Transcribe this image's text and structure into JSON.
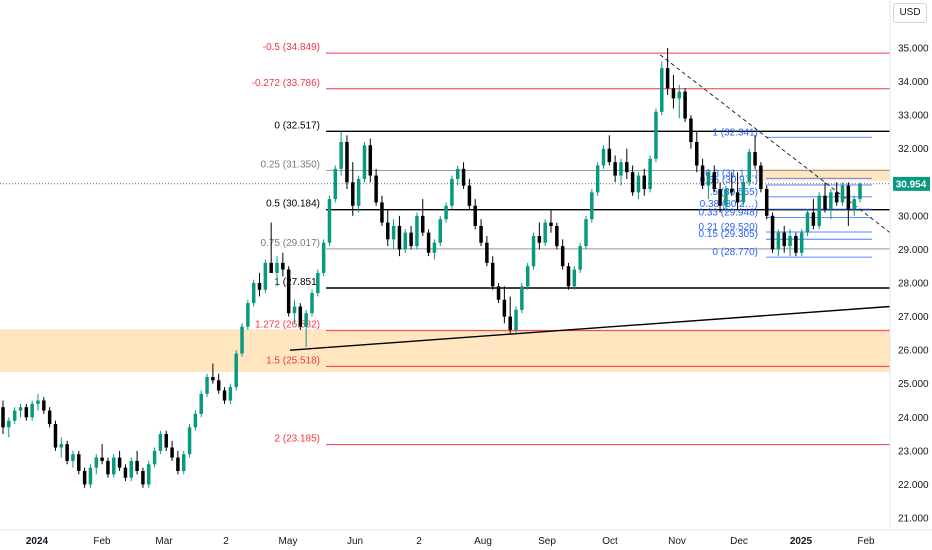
{
  "currency_button": "USD",
  "price_label": "30.954",
  "chart_data": {
    "type": "candlestick",
    "title": "",
    "y_axis": {
      "ticks": [
        "35.000",
        "34.000",
        "33.000",
        "32.000",
        "31.000",
        "30.000",
        "29.000",
        "28.000",
        "27.000",
        "26.000",
        "25.000",
        "24.000",
        "23.000",
        "22.000",
        "21.000"
      ],
      "ylim": [
        20.5,
        36.0
      ]
    },
    "x_axis": {
      "ticks": [
        "2024",
        "Feb",
        "Mar",
        "2",
        "May",
        "Jun",
        "2",
        "Aug",
        "Sep",
        "Oct",
        "Nov",
        "Dec",
        "2025",
        "Feb"
      ],
      "bold_ticks": [
        "2024",
        "2025"
      ]
    },
    "fib_levels_main": [
      {
        "label": "-0.5 (34.849)",
        "value": 34.849,
        "color": "#f23645"
      },
      {
        "label": "-0.272 (33.786)",
        "value": 33.786,
        "color": "#f23645"
      },
      {
        "label": "0 (32.517)",
        "value": 32.517,
        "color": "#000000"
      },
      {
        "label": "0.25 (31.350)",
        "value": 31.35,
        "color": "#9598a1"
      },
      {
        "label": "0.5 (30.184)",
        "value": 30.184,
        "color": "#000000"
      },
      {
        "label": "0.75 (29.017)",
        "value": 29.017,
        "color": "#9598a1"
      },
      {
        "label": "1 (27.851)",
        "value": 27.851,
        "color": "#000000"
      },
      {
        "label": "1.272 (26.582)",
        "value": 26.582,
        "color": "#f23645"
      },
      {
        "label": "1.5 (25.518)",
        "value": 25.518,
        "color": "#f23645"
      },
      {
        "label": "2 (23.185)",
        "value": 23.185,
        "color": "#f23645"
      }
    ],
    "fib_levels_small": [
      {
        "label": "1 (32.341)",
        "value": 32.341
      },
      {
        "label": "0.8 (31.1…)",
        "value": 31.12
      },
      {
        "label": "0.65 (30.9…)",
        "value": 30.92
      },
      {
        "label": ".5 (30.565)",
        "value": 30.565
      },
      {
        "label": "0.38 (30.2…)",
        "value": 30.2
      },
      {
        "label": "0.33 (29.948)",
        "value": 29.948
      },
      {
        "label": "0.21 (29.520)",
        "value": 29.52
      },
      {
        "label": "0.15 (29.305)",
        "value": 29.305
      },
      {
        "label": "0 (28.770)",
        "value": 28.77
      }
    ],
    "highlight_zones": [
      {
        "from": 25.35,
        "to": 26.62,
        "color": "#ffe0b2"
      },
      {
        "from": 31.05,
        "to": 31.4,
        "color": "#ffe0b2"
      }
    ],
    "trendline_support": [
      {
        "bar": 0,
        "price": 26.0
      },
      {
        "bar": 0,
        "price": 27.3
      }
    ],
    "trendline_resistance": [
      {
        "bar": 0,
        "price": 34.8
      },
      {
        "bar": 0,
        "price": 29.5
      }
    ],
    "current_price": 30.954,
    "candles_ohlc": [
      [
        24.3,
        24.5,
        23.5,
        23.7
      ],
      [
        23.7,
        24.0,
        23.4,
        23.9
      ],
      [
        23.9,
        24.3,
        23.8,
        24.2
      ],
      [
        24.2,
        24.4,
        24.0,
        24.3
      ],
      [
        24.3,
        24.4,
        23.9,
        24.0
      ],
      [
        24.0,
        24.5,
        23.9,
        24.4
      ],
      [
        24.4,
        24.7,
        24.2,
        24.5
      ],
      [
        24.5,
        24.6,
        24.1,
        24.2
      ],
      [
        24.2,
        24.3,
        23.7,
        23.8
      ],
      [
        23.8,
        23.9,
        23.0,
        23.1
      ],
      [
        23.1,
        23.4,
        22.8,
        23.2
      ],
      [
        23.2,
        23.3,
        22.6,
        22.7
      ],
      [
        22.7,
        23.0,
        22.5,
        22.9
      ],
      [
        22.9,
        23.0,
        22.3,
        22.4
      ],
      [
        22.4,
        22.5,
        21.9,
        22.0
      ],
      [
        22.0,
        22.6,
        21.9,
        22.5
      ],
      [
        22.5,
        22.9,
        22.3,
        22.8
      ],
      [
        22.8,
        23.2,
        22.6,
        22.7
      ],
      [
        22.7,
        22.8,
        22.2,
        22.3
      ],
      [
        22.3,
        22.9,
        22.2,
        22.8
      ],
      [
        22.8,
        23.0,
        22.4,
        22.5
      ],
      [
        22.5,
        22.6,
        22.1,
        22.2
      ],
      [
        22.2,
        22.8,
        22.1,
        22.7
      ],
      [
        22.7,
        23.0,
        22.3,
        22.4
      ],
      [
        22.4,
        22.5,
        21.9,
        22.0
      ],
      [
        22.0,
        22.7,
        21.9,
        22.6
      ],
      [
        22.6,
        23.1,
        22.5,
        23.0
      ],
      [
        23.0,
        23.6,
        22.9,
        23.5
      ],
      [
        23.5,
        23.6,
        23.0,
        23.1
      ],
      [
        23.1,
        23.3,
        22.7,
        22.8
      ],
      [
        22.8,
        23.0,
        22.3,
        22.4
      ],
      [
        22.4,
        23.0,
        22.3,
        22.9
      ],
      [
        22.9,
        23.8,
        22.8,
        23.7
      ],
      [
        23.7,
        24.2,
        23.6,
        24.1
      ],
      [
        24.1,
        24.8,
        24.0,
        24.7
      ],
      [
        24.7,
        25.3,
        24.6,
        25.2
      ],
      [
        25.2,
        25.6,
        25.0,
        25.1
      ],
      [
        25.1,
        25.3,
        24.7,
        24.8
      ],
      [
        24.8,
        24.9,
        24.4,
        24.5
      ],
      [
        24.5,
        25.0,
        24.4,
        24.9
      ],
      [
        24.9,
        26.0,
        24.8,
        25.9
      ],
      [
        25.9,
        26.8,
        25.8,
        26.7
      ],
      [
        26.7,
        27.5,
        26.6,
        27.4
      ],
      [
        27.4,
        28.1,
        27.3,
        28.0
      ],
      [
        28.0,
        28.3,
        27.6,
        27.8
      ],
      [
        27.8,
        28.7,
        27.7,
        28.6
      ],
      [
        28.6,
        29.8,
        28.5,
        28.3
      ],
      [
        28.3,
        28.8,
        27.9,
        28.6
      ],
      [
        28.6,
        28.9,
        28.2,
        28.4
      ],
      [
        28.4,
        28.5,
        27.0,
        27.1
      ],
      [
        27.1,
        27.5,
        26.8,
        27.3
      ],
      [
        27.3,
        27.4,
        26.6,
        26.7
      ],
      [
        26.7,
        27.2,
        26.1,
        27.1
      ],
      [
        27.1,
        27.8,
        27.0,
        27.7
      ],
      [
        27.7,
        28.4,
        27.6,
        28.3
      ],
      [
        28.3,
        29.3,
        28.2,
        29.2
      ],
      [
        29.2,
        30.6,
        29.1,
        30.5
      ],
      [
        30.5,
        31.5,
        30.4,
        31.4
      ],
      [
        31.4,
        32.5,
        31.2,
        32.2
      ],
      [
        32.2,
        32.4,
        30.8,
        31.0
      ],
      [
        31.0,
        31.6,
        30.0,
        30.3
      ],
      [
        30.3,
        31.2,
        30.1,
        31.1
      ],
      [
        31.1,
        32.2,
        31.0,
        32.1
      ],
      [
        32.1,
        32.3,
        31.0,
        31.2
      ],
      [
        31.2,
        31.4,
        30.3,
        30.4
      ],
      [
        30.4,
        30.6,
        29.7,
        29.8
      ],
      [
        29.8,
        30.2,
        29.1,
        29.3
      ],
      [
        29.3,
        29.9,
        29.0,
        29.7
      ],
      [
        29.7,
        30.0,
        28.8,
        29.0
      ],
      [
        29.0,
        29.6,
        28.9,
        29.5
      ],
      [
        29.5,
        29.7,
        29.0,
        29.1
      ],
      [
        29.1,
        30.1,
        29.0,
        30.0
      ],
      [
        30.0,
        30.5,
        29.4,
        29.5
      ],
      [
        29.5,
        29.6,
        28.8,
        28.9
      ],
      [
        28.9,
        29.3,
        28.7,
        29.2
      ],
      [
        29.2,
        30.0,
        29.1,
        29.9
      ],
      [
        29.9,
        30.4,
        29.8,
        30.3
      ],
      [
        30.3,
        31.2,
        30.2,
        31.1
      ],
      [
        31.1,
        31.5,
        30.9,
        31.4
      ],
      [
        31.4,
        31.6,
        30.8,
        30.9
      ],
      [
        30.9,
        31.1,
        30.2,
        30.3
      ],
      [
        30.3,
        30.5,
        29.6,
        29.7
      ],
      [
        29.7,
        29.9,
        29.1,
        29.2
      ],
      [
        29.2,
        29.4,
        28.5,
        28.6
      ],
      [
        28.6,
        28.8,
        27.8,
        27.9
      ],
      [
        27.9,
        28.0,
        27.4,
        27.5
      ],
      [
        27.5,
        27.9,
        26.8,
        27.0
      ],
      [
        27.0,
        27.6,
        26.5,
        26.6
      ],
      [
        26.6,
        27.3,
        26.5,
        27.2
      ],
      [
        27.2,
        28.0,
        27.1,
        27.9
      ],
      [
        27.9,
        28.6,
        27.8,
        28.5
      ],
      [
        28.5,
        29.5,
        28.4,
        29.4
      ],
      [
        29.4,
        29.8,
        29.0,
        29.2
      ],
      [
        29.2,
        29.9,
        29.1,
        29.8
      ],
      [
        29.8,
        30.2,
        29.5,
        29.7
      ],
      [
        29.7,
        29.8,
        29.0,
        29.1
      ],
      [
        29.1,
        29.3,
        28.4,
        28.5
      ],
      [
        28.5,
        28.6,
        27.8,
        27.9
      ],
      [
        27.9,
        28.5,
        27.8,
        28.4
      ],
      [
        28.4,
        29.2,
        28.3,
        29.1
      ],
      [
        29.1,
        30.0,
        29.0,
        29.9
      ],
      [
        29.9,
        30.8,
        29.8,
        30.7
      ],
      [
        30.7,
        31.6,
        30.6,
        31.5
      ],
      [
        31.5,
        32.1,
        31.4,
        32.0
      ],
      [
        32.0,
        32.4,
        31.5,
        31.6
      ],
      [
        31.6,
        31.8,
        31.0,
        31.2
      ],
      [
        31.2,
        31.7,
        30.9,
        31.6
      ],
      [
        31.6,
        32.0,
        31.1,
        31.3
      ],
      [
        31.3,
        31.5,
        30.6,
        30.7
      ],
      [
        30.7,
        31.3,
        30.5,
        31.2
      ],
      [
        31.2,
        31.4,
        30.6,
        30.8
      ],
      [
        30.8,
        31.8,
        30.7,
        31.7
      ],
      [
        31.7,
        33.2,
        31.6,
        33.1
      ],
      [
        33.1,
        34.6,
        33.0,
        34.4
      ],
      [
        34.4,
        35.0,
        33.6,
        33.8
      ],
      [
        33.8,
        34.2,
        33.2,
        33.5
      ],
      [
        33.5,
        33.9,
        32.9,
        33.7
      ],
      [
        33.7,
        33.8,
        32.8,
        32.9
      ],
      [
        32.9,
        33.0,
        32.0,
        32.2
      ],
      [
        32.2,
        32.5,
        31.3,
        31.5
      ],
      [
        31.5,
        31.7,
        30.8,
        30.9
      ],
      [
        30.9,
        31.4,
        30.5,
        31.3
      ],
      [
        31.3,
        31.5,
        30.7,
        30.8
      ],
      [
        30.8,
        31.0,
        30.1,
        30.3
      ],
      [
        30.3,
        30.9,
        30.1,
        30.8
      ],
      [
        30.8,
        31.3,
        30.6,
        30.7
      ],
      [
        30.7,
        31.3,
        30.2,
        30.4
      ],
      [
        30.4,
        31.1,
        30.3,
        31.0
      ],
      [
        31.0,
        32.0,
        30.9,
        31.9
      ],
      [
        31.9,
        32.4,
        31.4,
        31.5
      ],
      [
        31.5,
        31.6,
        30.7,
        30.8
      ],
      [
        30.8,
        30.9,
        29.9,
        30.0
      ],
      [
        30.0,
        30.1,
        28.9,
        29.0
      ],
      [
        29.0,
        29.6,
        28.8,
        29.5
      ],
      [
        29.5,
        29.7,
        28.9,
        29.1
      ],
      [
        29.1,
        29.6,
        28.8,
        29.4
      ],
      [
        29.4,
        29.5,
        28.8,
        28.9
      ],
      [
        28.9,
        29.6,
        28.8,
        29.5
      ],
      [
        29.5,
        30.2,
        29.4,
        30.1
      ],
      [
        30.1,
        30.5,
        29.6,
        29.7
      ],
      [
        29.7,
        30.7,
        29.6,
        30.6
      ],
      [
        30.6,
        31.0,
        30.1,
        30.2
      ],
      [
        30.2,
        30.8,
        29.9,
        30.7
      ],
      [
        30.7,
        31.0,
        30.3,
        30.4
      ],
      [
        30.4,
        31.0,
        30.3,
        30.9
      ],
      [
        30.9,
        31.0,
        29.7,
        30.2
      ],
      [
        30.2,
        30.6,
        30.0,
        30.5
      ],
      [
        30.5,
        31.0,
        30.4,
        30.954
      ]
    ]
  }
}
